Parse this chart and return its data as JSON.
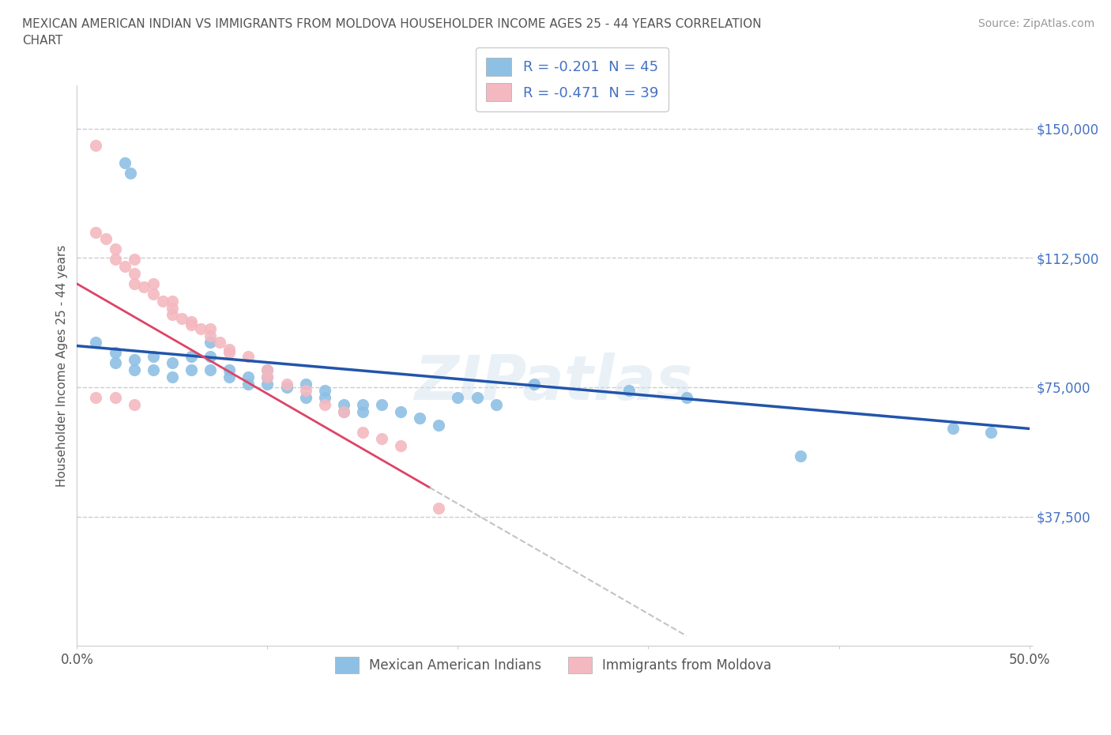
{
  "title": "MEXICAN AMERICAN INDIAN VS IMMIGRANTS FROM MOLDOVA HOUSEHOLDER INCOME AGES 25 - 44 YEARS CORRELATION\nCHART",
  "source_text": "Source: ZipAtlas.com",
  "ylabel": "Householder Income Ages 25 - 44 years",
  "xlim": [
    0.0,
    0.5
  ],
  "ylim": [
    0,
    162500
  ],
  "xticks": [
    0.0,
    0.1,
    0.2,
    0.3,
    0.4,
    0.5
  ],
  "xticklabels": [
    "0.0%",
    "",
    "",
    "",
    "",
    "50.0%"
  ],
  "ytick_positions": [
    0,
    37500,
    75000,
    112500,
    150000
  ],
  "ytick_labels": [
    "",
    "$37,500",
    "$75,000",
    "$112,500",
    "$150,000"
  ],
  "gridline_color": "#cccccc",
  "background_color": "#ffffff",
  "watermark": "ZIPatlas",
  "blue_color": "#8ec0e4",
  "pink_color": "#f4b8c0",
  "blue_line_color": "#2255aa",
  "pink_line_color": "#dd4466",
  "legend_r1": "R = -0.201  N = 45",
  "legend_r2": "R = -0.471  N = 39",
  "legend_label1": "Mexican American Indians",
  "legend_label2": "Immigrants from Moldova",
  "blue_scatter_x": [
    0.025,
    0.028,
    0.01,
    0.02,
    0.02,
    0.03,
    0.03,
    0.04,
    0.04,
    0.05,
    0.05,
    0.06,
    0.06,
    0.07,
    0.07,
    0.07,
    0.08,
    0.08,
    0.09,
    0.09,
    0.1,
    0.1,
    0.1,
    0.11,
    0.12,
    0.12,
    0.13,
    0.13,
    0.14,
    0.14,
    0.15,
    0.15,
    0.16,
    0.17,
    0.2,
    0.21,
    0.22,
    0.24,
    0.29,
    0.32,
    0.38,
    0.46,
    0.48,
    0.18,
    0.19
  ],
  "blue_scatter_y": [
    140000,
    137000,
    88000,
    85000,
    82000,
    83000,
    80000,
    84000,
    80000,
    82000,
    78000,
    84000,
    80000,
    88000,
    84000,
    80000,
    80000,
    78000,
    78000,
    76000,
    78000,
    80000,
    76000,
    75000,
    76000,
    72000,
    74000,
    72000,
    70000,
    68000,
    70000,
    68000,
    70000,
    68000,
    72000,
    72000,
    70000,
    76000,
    74000,
    72000,
    55000,
    63000,
    62000,
    66000,
    64000
  ],
  "pink_scatter_x": [
    0.01,
    0.01,
    0.015,
    0.02,
    0.02,
    0.025,
    0.03,
    0.03,
    0.03,
    0.035,
    0.04,
    0.04,
    0.045,
    0.05,
    0.05,
    0.05,
    0.055,
    0.06,
    0.06,
    0.065,
    0.07,
    0.07,
    0.075,
    0.08,
    0.08,
    0.09,
    0.1,
    0.1,
    0.11,
    0.12,
    0.13,
    0.14,
    0.15,
    0.16,
    0.17,
    0.19,
    0.01,
    0.02,
    0.03
  ],
  "pink_scatter_y": [
    145000,
    120000,
    118000,
    115000,
    112000,
    110000,
    112000,
    108000,
    105000,
    104000,
    105000,
    102000,
    100000,
    100000,
    98000,
    96000,
    95000,
    94000,
    93000,
    92000,
    92000,
    90000,
    88000,
    86000,
    85000,
    84000,
    80000,
    78000,
    76000,
    74000,
    70000,
    68000,
    62000,
    60000,
    58000,
    40000,
    72000,
    72000,
    70000
  ]
}
